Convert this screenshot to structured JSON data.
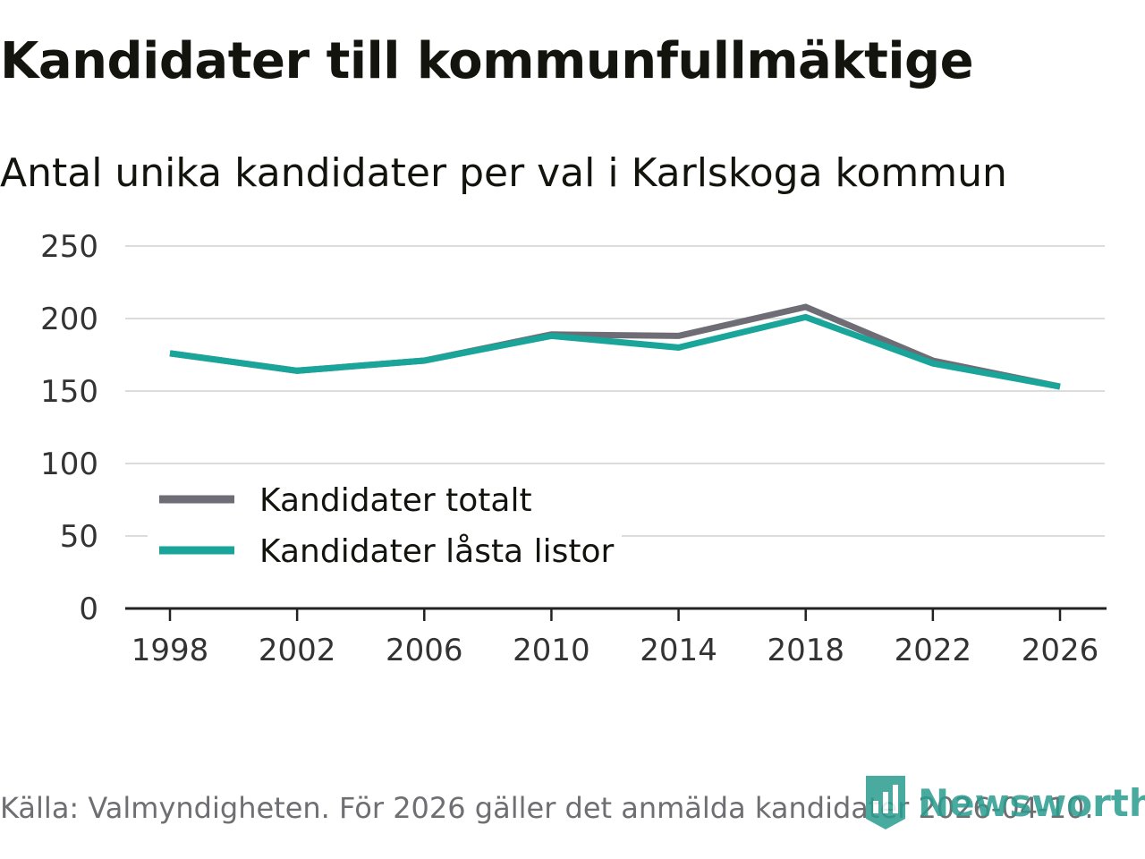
{
  "chart_data": {
    "type": "line",
    "title": "Kandidater till kommunfullmäktige",
    "subtitle": "Antal unika kandidater per val i Karlskoga kommun",
    "x": [
      1998,
      2002,
      2006,
      2010,
      2014,
      2018,
      2022,
      2026
    ],
    "x_tick_labels": [
      "1998",
      "2002",
      "2006",
      "2010",
      "2014",
      "2018",
      "2022",
      "2026"
    ],
    "y_ticks": [
      0,
      50,
      100,
      150,
      200,
      250
    ],
    "y_tick_labels": [
      "0",
      "50",
      "100",
      "150",
      "200",
      "250"
    ],
    "ylim": [
      0,
      250
    ],
    "xlim": [
      1998,
      2026
    ],
    "grid": true,
    "legend_position": "bottom-left",
    "series": [
      {
        "name": "Kandidater totalt",
        "color": "#6e6d75",
        "values": [
          176,
          164,
          171,
          189,
          188,
          208,
          171,
          153
        ]
      },
      {
        "name": "Kandidater låsta listor",
        "color": "#1aa59a",
        "values": [
          176,
          164,
          171,
          188,
          180,
          201,
          169,
          153
        ]
      }
    ],
    "source": "Källa: Valmyndigheten. För 2026 gäller det anmälda kandidater 2026-04-10."
  },
  "brand": {
    "name": "Newsworthy",
    "logo_icon": "bar-chart-bookmark-icon",
    "color": "#2a9d8f"
  }
}
